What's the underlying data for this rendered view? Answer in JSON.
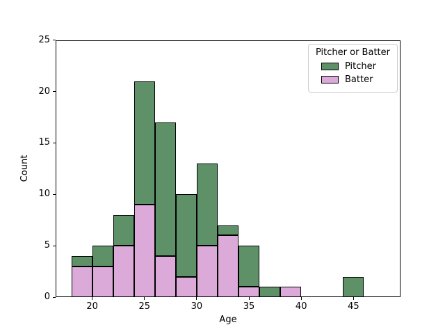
{
  "axes": {
    "xlabel": "Age",
    "ylabel": "Count",
    "x_ticks": [
      20,
      25,
      30,
      35,
      40,
      45
    ],
    "y_ticks": [
      0,
      5,
      10,
      15,
      20,
      25
    ],
    "xlim": [
      16.5,
      49.5
    ],
    "ylim": [
      0,
      25
    ]
  },
  "legend": {
    "title": "Pitcher or Batter",
    "position": "upper right",
    "entries": [
      {
        "label": "Pitcher",
        "color": "#5e9168"
      },
      {
        "label": "Batter",
        "color": "#dbaad8"
      }
    ]
  },
  "chart_data": {
    "type": "bar",
    "subtype": "stacked-histogram",
    "title": "",
    "xlabel": "Age",
    "ylabel": "Count",
    "xlim": [
      16.5,
      49.5
    ],
    "ylim": [
      0,
      25
    ],
    "x_ticks": [
      20,
      25,
      30,
      35,
      40,
      45
    ],
    "y_ticks": [
      0,
      5,
      10,
      15,
      20,
      25
    ],
    "grid": false,
    "bin_width": 2,
    "bin_edges": [
      18,
      20,
      22,
      24,
      26,
      28,
      30,
      32,
      34,
      36,
      38,
      40,
      42,
      44,
      46,
      48
    ],
    "stack_order_bottom_to_top": [
      "Batter",
      "Pitcher"
    ],
    "series": [
      {
        "name": "Batter",
        "color": "#dbaad8",
        "values": [
          3,
          3,
          5,
          9,
          4,
          2,
          5,
          6,
          1,
          0,
          1,
          0,
          0,
          0,
          0
        ]
      },
      {
        "name": "Pitcher",
        "color": "#5e9168",
        "values": [
          1,
          2,
          3,
          12,
          13,
          8,
          8,
          1,
          4,
          1,
          0,
          0,
          0,
          2,
          0
        ]
      }
    ],
    "stacked_totals": [
      4,
      5,
      8,
      21,
      17,
      10,
      13,
      7,
      5,
      1,
      1,
      0,
      0,
      2,
      0
    ],
    "edge_color": "#000000",
    "legend_title": "Pitcher or Batter",
    "legend_position": "upper right"
  }
}
